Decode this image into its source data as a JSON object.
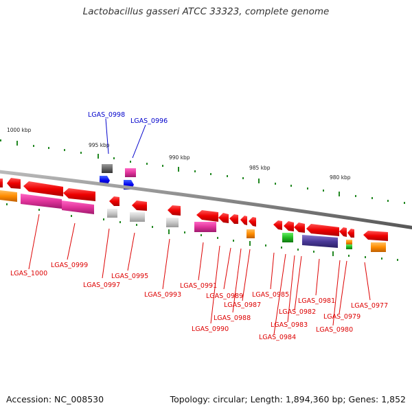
{
  "title": "Lactobacillus gasseri ATCC 33323, complete genome",
  "footer": {
    "accession": "Accession: NC_008530",
    "summary": "Topology: circular; Length: 1,894,360 bp; Genes: 1,852"
  },
  "scale_labels": [
    "1000 kbp",
    "995 kbp",
    "990 kbp",
    "985 kbp",
    "980 kbp"
  ],
  "colors": {
    "forward_cds": "#ff0000",
    "gene_magenta": "#e0339a",
    "gene_orange": "#ff8c00",
    "gene_green": "#22bb22",
    "gene_blue": "#0000ee",
    "gene_gray": "#c8c8c8",
    "gene_darkgray": "#666666",
    "gene_purple": "#4b3a99",
    "label_red": "#dd0000",
    "label_blue": "#0000cc",
    "tick_green": "#228822",
    "backbone": "#999999"
  },
  "gene_labels": [
    {
      "id": "LGAS_0998",
      "color": "blue"
    },
    {
      "id": "LGAS_0996",
      "color": "blue"
    },
    {
      "id": "LGAS_1000",
      "color": "red"
    },
    {
      "id": "LGAS_0999",
      "color": "red"
    },
    {
      "id": "LGAS_0997",
      "color": "red"
    },
    {
      "id": "LGAS_0995",
      "color": "red"
    },
    {
      "id": "LGAS_0993",
      "color": "red"
    },
    {
      "id": "LGAS_0991",
      "color": "red"
    },
    {
      "id": "LGAS_0989",
      "color": "red"
    },
    {
      "id": "LGAS_0987",
      "color": "red"
    },
    {
      "id": "LGAS_0988",
      "color": "red"
    },
    {
      "id": "LGAS_0990",
      "color": "red"
    },
    {
      "id": "LGAS_0985",
      "color": "red"
    },
    {
      "id": "LGAS_0981",
      "color": "red"
    },
    {
      "id": "LGAS_0982",
      "color": "red"
    },
    {
      "id": "LGAS_0983",
      "color": "red"
    },
    {
      "id": "LGAS_0984",
      "color": "red"
    },
    {
      "id": "LGAS_0977",
      "color": "red"
    },
    {
      "id": "LGAS_0979",
      "color": "red"
    },
    {
      "id": "LGAS_0980",
      "color": "red"
    }
  ]
}
